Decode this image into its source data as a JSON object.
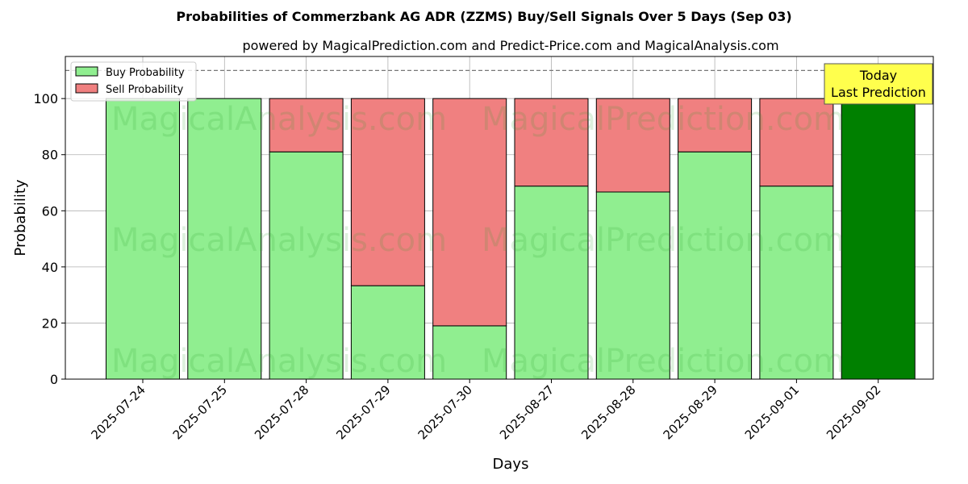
{
  "chart_data": {
    "type": "bar",
    "stacked": true,
    "title": "Probabilities of Commerzbank AG ADR (ZZMS) Buy/Sell Signals Over 5 Days (Sep 03)",
    "subtitle": "powered by MagicalPrediction.com and Predict-Price.com and MagicalAnalysis.com",
    "xlabel": "Days",
    "ylabel": "Probability",
    "ylim": [
      0,
      115
    ],
    "yticks": [
      0,
      20,
      40,
      60,
      80,
      100
    ],
    "grid": true,
    "legend_position": "top-left",
    "reference_line": 110,
    "categories": [
      "2025-07-24",
      "2025-07-25",
      "2025-07-28",
      "2025-07-29",
      "2025-07-30",
      "2025-08-27",
      "2025-08-28",
      "2025-08-29",
      "2025-09-01",
      "2025-09-02"
    ],
    "series": [
      {
        "name": "Buy Probability",
        "color": "#90ee90",
        "values": [
          100,
          100,
          81,
          33.3,
          19,
          68.8,
          66.7,
          81,
          68.8,
          100
        ]
      },
      {
        "name": "Sell Probability",
        "color": "#f08080",
        "values": [
          0,
          0,
          19,
          66.7,
          81,
          31.2,
          33.3,
          19,
          31.2,
          0
        ]
      }
    ],
    "highlight": {
      "category_index": 9,
      "color": "#008000"
    },
    "annotation": {
      "line1": "Today",
      "line2": "Last Prediction",
      "color": "#ffff4d"
    },
    "watermarks": [
      "MagicalAnalysis.com",
      "MagicalPrediction.com"
    ]
  }
}
